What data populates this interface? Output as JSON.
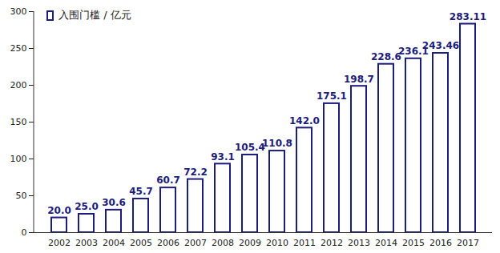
{
  "chart_data": {
    "type": "bar",
    "categories": [
      "2002",
      "2003",
      "2004",
      "2005",
      "2006",
      "2007",
      "2008",
      "2009",
      "2010",
      "2011",
      "2012",
      "2013",
      "2014",
      "2015",
      "2016",
      "2017"
    ],
    "series": [
      {
        "name": "入围门槛 / 亿元",
        "color": "#1c1c7c",
        "values": [
          20.0,
          25.0,
          30.6,
          45.7,
          60.7,
          72.2,
          93.1,
          105.4,
          110.8,
          142.0,
          175.1,
          198.7,
          228.6,
          236.1,
          243.46,
          283.11
        ],
        "value_labels": [
          "20.0",
          "25.0",
          "30.6",
          "45.7",
          "60.7",
          "72.2",
          "93.1",
          "105.4",
          "110.8",
          "142.0",
          "175.1",
          "198.7",
          "228.6",
          "236.1",
          "243.46",
          "283.11"
        ]
      }
    ],
    "ylim": [
      0,
      300
    ],
    "yticks": [
      0,
      50,
      100,
      150,
      200,
      250,
      300
    ],
    "grid": false,
    "legend": "top-left",
    "data_labels": true
  }
}
